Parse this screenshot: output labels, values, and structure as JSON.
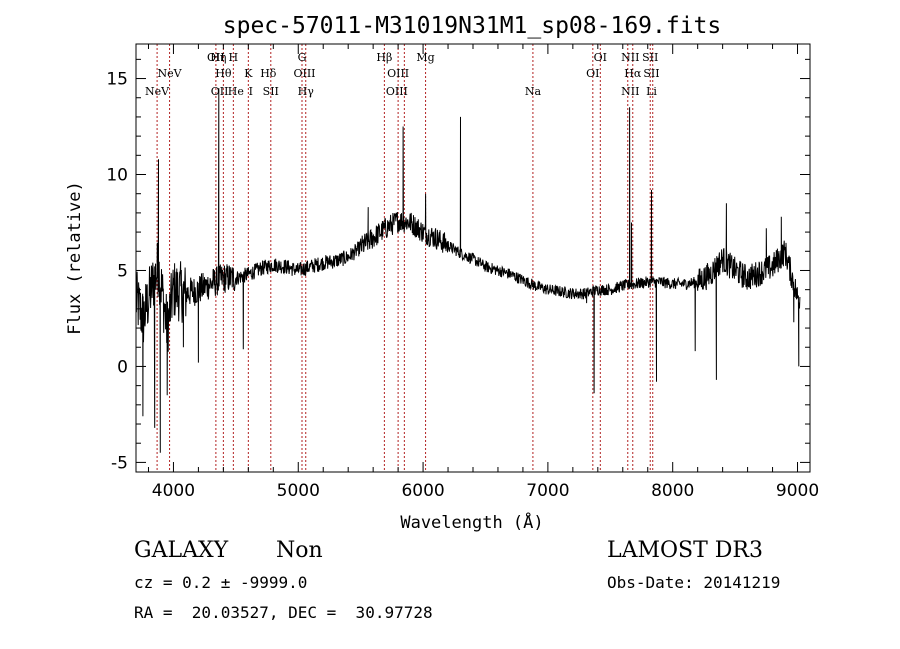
{
  "chart_data": {
    "type": "line",
    "title": "spec-57011-M31019N31M1_sp08-169.fits",
    "xlabel": "Wavelength (Å)",
    "ylabel": "Flux (relative)",
    "xlim": [
      3700,
      9100
    ],
    "ylim": [
      -5.5,
      16.8
    ],
    "xticks": [
      4000,
      5000,
      6000,
      7000,
      8000,
      9000
    ],
    "yticks": [
      -5,
      0,
      5,
      10,
      15
    ],
    "line_color": "#000000",
    "marker_color": "#b22222",
    "emission_lines": [
      {
        "label": "NeV",
        "wavelength": 3869,
        "row": 3
      },
      {
        "label": "NeV",
        "wavelength": 3969,
        "row": 2
      },
      {
        "label": "OII",
        "wavelength": 4340,
        "row": 1
      },
      {
        "label": "Hη",
        "wavelength": 4360,
        "row": 1
      },
      {
        "label": "OII",
        "wavelength": 4370,
        "row": 3
      },
      {
        "label": "Hθ",
        "wavelength": 4400,
        "row": 2
      },
      {
        "label": "H",
        "wavelength": 4480,
        "row": 1
      },
      {
        "label": "He",
        "wavelength": 4500,
        "row": 3
      },
      {
        "label": "K",
        "wavelength": 4600,
        "row": 2
      },
      {
        "label": "I",
        "wavelength": 4620,
        "row": 3
      },
      {
        "label": "Hδ",
        "wavelength": 4760,
        "row": 2
      },
      {
        "label": "SII",
        "wavelength": 4780,
        "row": 3
      },
      {
        "label": "G",
        "wavelength": 5030,
        "row": 1
      },
      {
        "label": "OIII",
        "wavelength": 5050,
        "row": 2
      },
      {
        "label": "Hγ",
        "wavelength": 5060,
        "row": 3
      },
      {
        "label": "Hβ",
        "wavelength": 5690,
        "row": 1
      },
      {
        "label": "OIII",
        "wavelength": 5800,
        "row": 2
      },
      {
        "label": "OIII",
        "wavelength": 5790,
        "row": 3
      },
      {
        "label": "Mg",
        "wavelength": 6020,
        "row": 1
      },
      {
        "label": "Na",
        "wavelength": 6880,
        "row": 3
      },
      {
        "label": "OI",
        "wavelength": 7420,
        "row": 1
      },
      {
        "label": "OI",
        "wavelength": 7360,
        "row": 2
      },
      {
        "label": "NII",
        "wavelength": 7660,
        "row": 1
      },
      {
        "label": "Hα",
        "wavelength": 7680,
        "row": 2
      },
      {
        "label": "NII",
        "wavelength": 7660,
        "row": 3
      },
      {
        "label": "SII",
        "wavelength": 7820,
        "row": 1
      },
      {
        "label": "SII",
        "wavelength": 7830,
        "row": 2
      },
      {
        "label": "Li",
        "wavelength": 7830,
        "row": 3
      }
    ],
    "line_markers": [
      3869,
      3969,
      4340,
      4400,
      4480,
      4600,
      4780,
      5030,
      5060,
      5690,
      5800,
      5850,
      6020,
      6880,
      7360,
      7420,
      7640,
      7680,
      7820,
      7840
    ],
    "spectrum_anchors": [
      [
        3700,
        3.5
      ],
      [
        3760,
        2.5
      ],
      [
        3820,
        4.0
      ],
      [
        3880,
        5.2
      ],
      [
        3950,
        2.0
      ],
      [
        4000,
        4.0
      ],
      [
        4100,
        3.8
      ],
      [
        4200,
        4.0
      ],
      [
        4300,
        4.3
      ],
      [
        4400,
        4.6
      ],
      [
        4500,
        4.6
      ],
      [
        4600,
        4.8
      ],
      [
        4700,
        5.1
      ],
      [
        4800,
        5.3
      ],
      [
        4900,
        5.2
      ],
      [
        5000,
        5.0
      ],
      [
        5100,
        5.2
      ],
      [
        5200,
        5.4
      ],
      [
        5300,
        5.5
      ],
      [
        5400,
        5.7
      ],
      [
        5500,
        6.2
      ],
      [
        5600,
        6.7
      ],
      [
        5700,
        7.2
      ],
      [
        5800,
        7.6
      ],
      [
        5900,
        7.5
      ],
      [
        6000,
        7.0
      ],
      [
        6100,
        6.7
      ],
      [
        6200,
        6.3
      ],
      [
        6300,
        5.9
      ],
      [
        6400,
        5.6
      ],
      [
        6500,
        5.2
      ],
      [
        6600,
        5.0
      ],
      [
        6700,
        4.8
      ],
      [
        6800,
        4.5
      ],
      [
        6900,
        4.2
      ],
      [
        7000,
        4.0
      ],
      [
        7100,
        3.9
      ],
      [
        7200,
        3.8
      ],
      [
        7300,
        3.8
      ],
      [
        7400,
        4.0
      ],
      [
        7500,
        4.0
      ],
      [
        7600,
        4.2
      ],
      [
        7700,
        4.3
      ],
      [
        7800,
        4.4
      ],
      [
        7900,
        4.4
      ],
      [
        8000,
        4.3
      ],
      [
        8100,
        4.3
      ],
      [
        8200,
        4.4
      ],
      [
        8300,
        4.8
      ],
      [
        8400,
        5.6
      ],
      [
        8500,
        5.0
      ],
      [
        8600,
        4.6
      ],
      [
        8700,
        4.9
      ],
      [
        8800,
        5.2
      ],
      [
        8900,
        6.0
      ],
      [
        9000,
        3.6
      ]
    ],
    "spectrum_spikes": [
      [
        3755,
        -2.6
      ],
      [
        3850,
        -3.2
      ],
      [
        3880,
        10.8
      ],
      [
        3895,
        -4.5
      ],
      [
        3950,
        -1.5
      ],
      [
        4080,
        1.0
      ],
      [
        4200,
        0.2
      ],
      [
        4363,
        14.5
      ],
      [
        4560,
        0.9
      ],
      [
        5560,
        8.3
      ],
      [
        5840,
        12.5
      ],
      [
        6020,
        9.0
      ],
      [
        6300,
        13.0
      ],
      [
        7310,
        3.3
      ],
      [
        7370,
        -1.4
      ],
      [
        7655,
        13.5
      ],
      [
        7670,
        7.5
      ],
      [
        7830,
        9.2
      ],
      [
        7870,
        -0.8
      ],
      [
        8180,
        0.8
      ],
      [
        8350,
        -0.7
      ],
      [
        8430,
        8.5
      ],
      [
        8750,
        7.2
      ],
      [
        8870,
        7.8
      ],
      [
        8970,
        2.3
      ],
      [
        9010,
        0.0
      ]
    ]
  },
  "info": {
    "object_class": "GALAXY",
    "subclass": "Non",
    "survey": "LAMOST DR3",
    "cz": "cz = 0.2 ± -9999.0",
    "obs_date": "Obs-Date: 20141219",
    "coords": "RA =  20.03527, DEC =  30.97728"
  }
}
